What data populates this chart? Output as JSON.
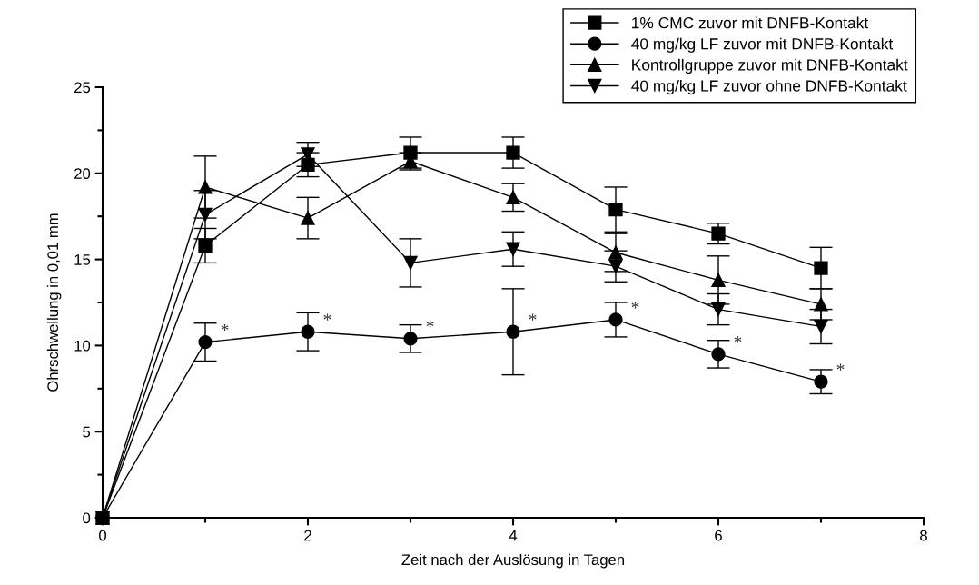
{
  "chart_data": {
    "type": "line",
    "xlabel": "Zeit nach der Auslösung in Tagen",
    "ylabel": "Ohrschwellung in 0,01 mm",
    "x": [
      0,
      1,
      2,
      3,
      4,
      5,
      6,
      7
    ],
    "xlim": [
      0,
      8
    ],
    "xticks": [
      0,
      2,
      4,
      6,
      8
    ],
    "ylim": [
      0,
      25
    ],
    "yticks": [
      0,
      5,
      10,
      15,
      20,
      25
    ],
    "grid": false,
    "legend": "top right",
    "line_style": "solid",
    "series": [
      {
        "name": "1% CMC zuvor mit DNFB-Kontakt",
        "color": "#000000",
        "marker": "square",
        "values": [
          0,
          15.8,
          20.5,
          21.2,
          21.2,
          17.9,
          16.5,
          14.5
        ],
        "errors": [
          null,
          1.0,
          0.7,
          0.9,
          0.9,
          1.3,
          0.6,
          1.2
        ]
      },
      {
        "name": "40 mg/kg LF zuvor mit DNFB-Kontakt",
        "color": "#000000",
        "marker": "circle",
        "values": [
          0,
          10.2,
          10.8,
          10.4,
          10.8,
          11.5,
          9.5,
          7.9
        ],
        "errors": [
          null,
          1.1,
          1.1,
          0.8,
          2.5,
          1.0,
          0.8,
          0.7
        ]
      },
      {
        "name": "Kontrollgruppe zuvor mit DNFB-Kontakt",
        "color": "#000000",
        "marker": "triangle",
        "values": [
          0,
          19.2,
          17.4,
          20.7,
          18.6,
          15.4,
          13.8,
          12.4
        ],
        "errors": [
          null,
          1.8,
          1.2,
          0.5,
          0.8,
          1.1,
          1.4,
          0.9
        ]
      },
      {
        "name": "40 mg/kg LF zuvor ohne DNFB-Kontakt",
        "color": "#000000",
        "marker": "triangle_down",
        "values": [
          0,
          17.6,
          21.1,
          14.8,
          15.6,
          14.6,
          12.1,
          11.1
        ],
        "errors": [
          null,
          1.4,
          0.7,
          1.4,
          1.0,
          0.9,
          0.9,
          1.0
        ]
      }
    ],
    "annotations": [
      {
        "text": "*",
        "x": 1,
        "y": 10.2
      },
      {
        "text": "*",
        "x": 2,
        "y": 10.8
      },
      {
        "text": "*",
        "x": 3,
        "y": 10.4
      },
      {
        "text": "*",
        "x": 4,
        "y": 10.8
      },
      {
        "text": "*",
        "x": 5,
        "y": 11.5
      },
      {
        "text": "*",
        "x": 6,
        "y": 9.5
      },
      {
        "text": "*",
        "x": 7,
        "y": 7.9
      }
    ]
  }
}
